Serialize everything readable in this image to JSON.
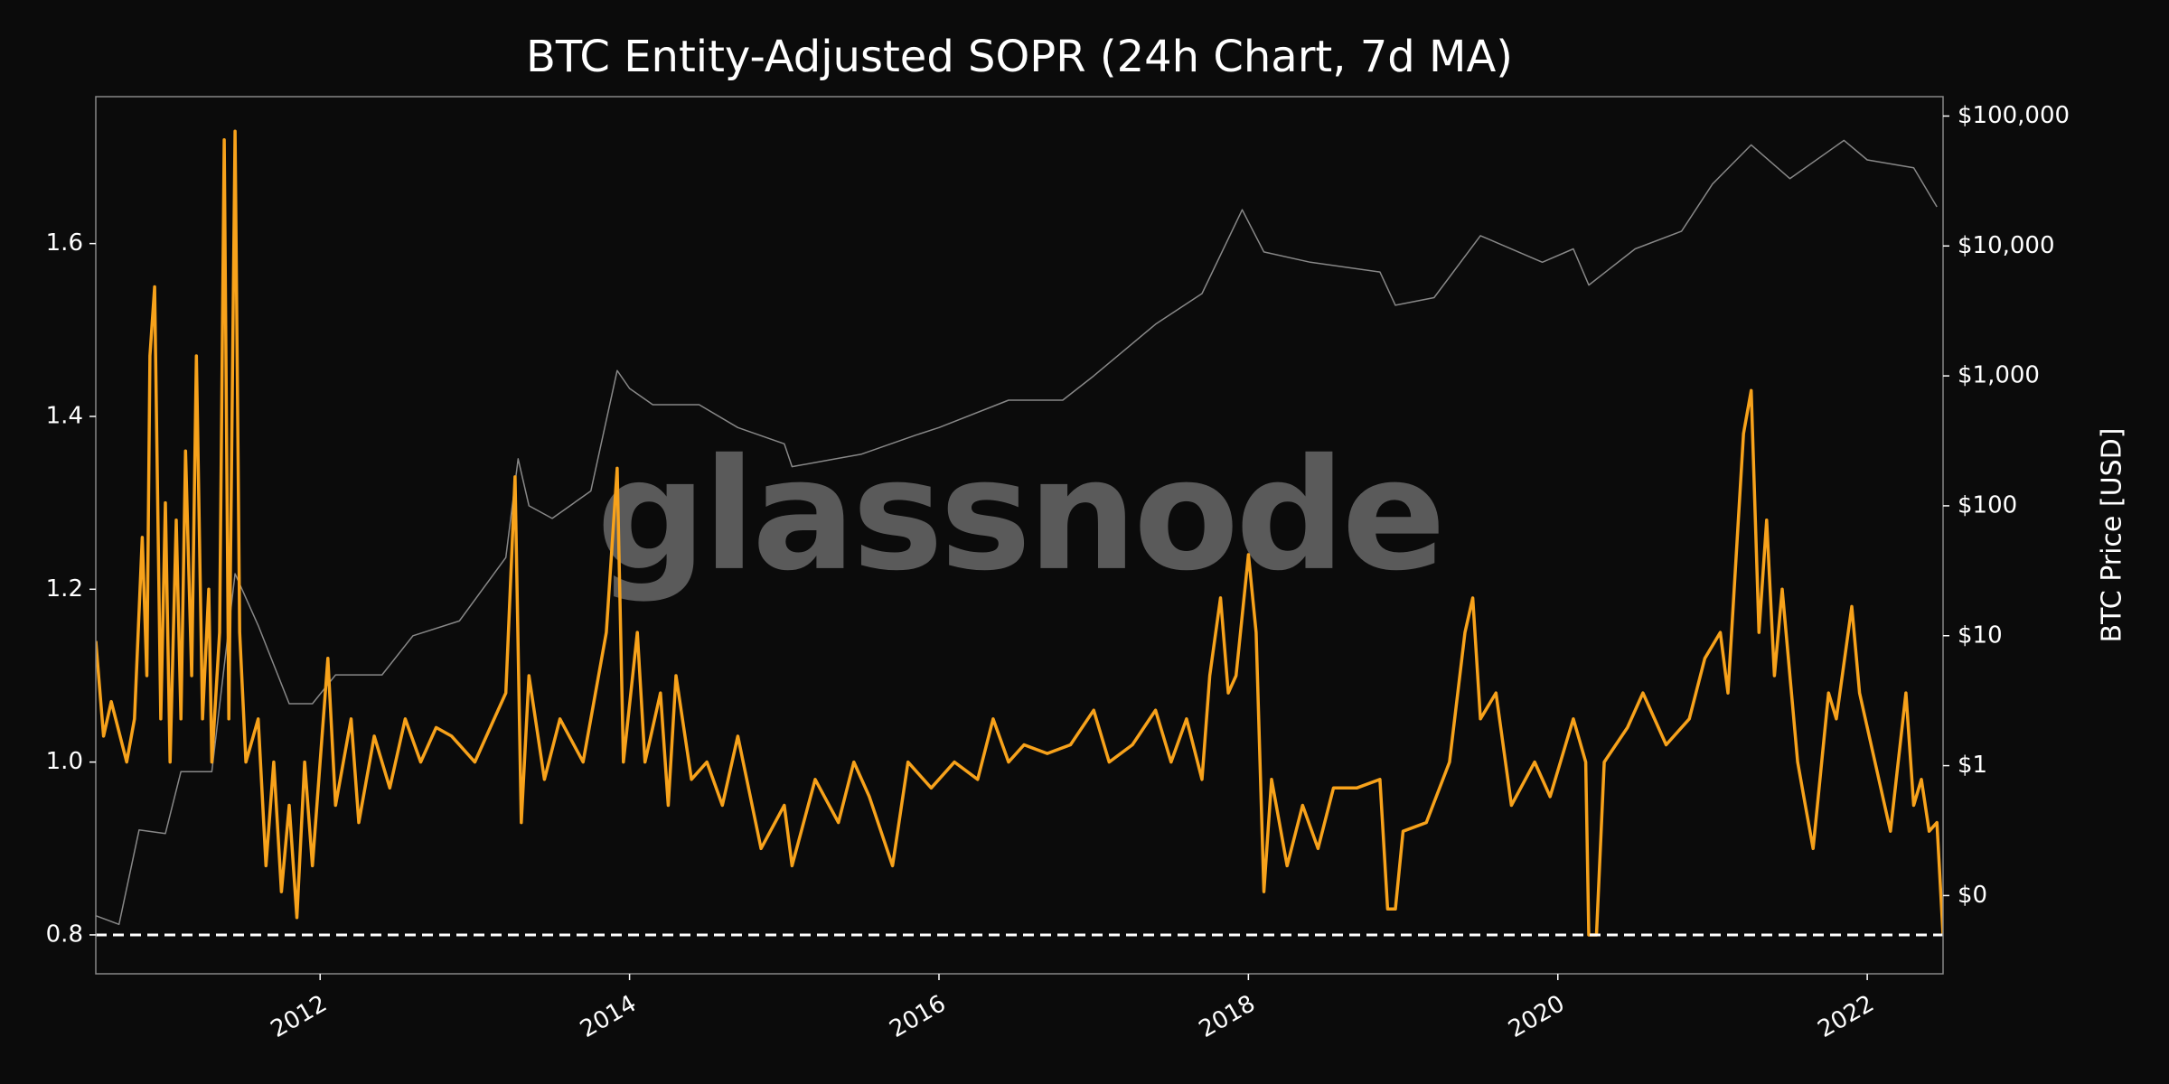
{
  "chart_data": {
    "type": "line",
    "title": "BTC Entity-Adjusted SOPR (24h Chart, 7d MA)",
    "watermark": "glassnode",
    "y2label": "BTC Price [USD]",
    "xlim": [
      2010.55,
      2022.49
    ],
    "xticks": [
      2012,
      2014,
      2016,
      2018,
      2020,
      2022
    ],
    "ylim": [
      0.755,
      1.77
    ],
    "yticks": [
      0.8,
      {
        "value": 1,
        "label": "1.0"
      },
      1.2,
      1.4,
      1.6
    ],
    "y2lim": [
      0.025,
      141000
    ],
    "y2log": true,
    "y2ticks": [
      {
        "value": 0.1,
        "label": "$0"
      },
      {
        "value": 1,
        "label": "$1"
      },
      {
        "value": 10,
        "label": "$10"
      },
      {
        "value": 100,
        "label": "$100"
      },
      {
        "value": 1000,
        "label": "$1,000"
      },
      {
        "value": 10000,
        "label": "$10,000"
      },
      {
        "value": 100000,
        "label": "$100,000"
      }
    ],
    "hline": 0.8,
    "hline_color": "#ffffff",
    "background": "#0b0b0b",
    "series": [
      {
        "color": "#888888",
        "axis": "y2",
        "x": [
          2010.55,
          2010.7,
          2010.83,
          2011.0,
          2011.1,
          2011.3,
          2011.45,
          2011.6,
          2011.8,
          2011.95,
          2012.1,
          2012.4,
          2012.6,
          2012.9,
          2013.2,
          2013.28,
          2013.35,
          2013.5,
          2013.75,
          2013.92,
          2014.0,
          2014.15,
          2014.45,
          2014.7,
          2015.0,
          2015.05,
          2015.5,
          2015.85,
          2016.0,
          2016.45,
          2016.8,
          2017.0,
          2017.4,
          2017.7,
          2017.96,
          2018.1,
          2018.4,
          2018.85,
          2018.95,
          2019.2,
          2019.5,
          2019.9,
          2020.1,
          2020.2,
          2020.5,
          2020.8,
          2021.0,
          2021.25,
          2021.5,
          2021.85,
          2022.0,
          2022.3,
          2022.45
        ],
        "values": [
          0.07,
          0.06,
          0.32,
          0.3,
          0.9,
          0.9,
          30,
          12,
          3,
          3,
          5,
          5,
          10,
          13,
          40,
          230,
          100,
          80,
          130,
          1100,
          800,
          600,
          600,
          400,
          300,
          200,
          250,
          350,
          400,
          650,
          650,
          1000,
          2500,
          4300,
          19000,
          9000,
          7500,
          6300,
          3500,
          4000,
          12000,
          7500,
          9500,
          5000,
          9500,
          13000,
          30000,
          60000,
          33000,
          65000,
          46000,
          40000,
          20000
        ]
      },
      {
        "color": "#f7a21b",
        "axis": "y",
        "x": [
          2010.55,
          2010.6,
          2010.65,
          2010.75,
          2010.8,
          2010.85,
          2010.88,
          2010.9,
          2010.93,
          2010.97,
          2011.0,
          2011.03,
          2011.07,
          2011.1,
          2011.13,
          2011.17,
          2011.2,
          2011.24,
          2011.28,
          2011.3,
          2011.35,
          2011.38,
          2011.41,
          2011.45,
          2011.48,
          2011.52,
          2011.6,
          2011.65,
          2011.7,
          2011.75,
          2011.8,
          2011.85,
          2011.9,
          2011.95,
          2012.0,
          2012.05,
          2012.1,
          2012.2,
          2012.25,
          2012.35,
          2012.45,
          2012.55,
          2012.65,
          2012.75,
          2012.85,
          2013.0,
          2013.1,
          2013.2,
          2013.26,
          2013.3,
          2013.35,
          2013.45,
          2013.55,
          2013.7,
          2013.85,
          2013.92,
          2013.96,
          2014.05,
          2014.1,
          2014.2,
          2014.25,
          2014.3,
          2014.4,
          2014.5,
          2014.6,
          2014.7,
          2014.85,
          2015.0,
          2015.05,
          2015.2,
          2015.35,
          2015.45,
          2015.55,
          2015.7,
          2015.8,
          2015.95,
          2016.1,
          2016.25,
          2016.35,
          2016.45,
          2016.55,
          2016.7,
          2016.85,
          2017.0,
          2017.1,
          2017.25,
          2017.4,
          2017.5,
          2017.6,
          2017.7,
          2017.75,
          2017.82,
          2017.87,
          2017.92,
          2018.0,
          2018.05,
          2018.1,
          2018.15,
          2018.25,
          2018.35,
          2018.45,
          2018.55,
          2018.7,
          2018.85,
          2018.9,
          2018.95,
          2019.0,
          2019.15,
          2019.3,
          2019.4,
          2019.45,
          2019.5,
          2019.6,
          2019.7,
          2019.85,
          2019.95,
          2020.1,
          2020.18,
          2020.2,
          2020.25,
          2020.3,
          2020.45,
          2020.55,
          2020.7,
          2020.85,
          2020.95,
          2021.05,
          2021.1,
          2021.2,
          2021.25,
          2021.3,
          2021.35,
          2021.4,
          2021.45,
          2021.55,
          2021.6,
          2021.65,
          2021.75,
          2021.8,
          2021.9,
          2021.95,
          2022.05,
          2022.15,
          2022.25,
          2022.3,
          2022.35,
          2022.4,
          2022.45,
          2022.49
        ],
        "values": [
          1.14,
          1.03,
          1.07,
          1.0,
          1.05,
          1.26,
          1.1,
          1.47,
          1.55,
          1.05,
          1.3,
          1.0,
          1.28,
          1.05,
          1.36,
          1.1,
          1.47,
          1.05,
          1.2,
          1.0,
          1.15,
          1.72,
          1.05,
          1.73,
          1.15,
          1.0,
          1.05,
          0.88,
          1.0,
          0.85,
          0.95,
          0.82,
          1.0,
          0.88,
          1.0,
          1.12,
          0.95,
          1.05,
          0.93,
          1.03,
          0.97,
          1.05,
          1.0,
          1.04,
          1.03,
          1.0,
          1.04,
          1.08,
          1.33,
          0.93,
          1.1,
          0.98,
          1.05,
          1.0,
          1.15,
          1.34,
          1.0,
          1.15,
          1.0,
          1.08,
          0.95,
          1.1,
          0.98,
          1.0,
          0.95,
          1.03,
          0.9,
          0.95,
          0.88,
          0.98,
          0.93,
          1.0,
          0.96,
          0.88,
          1.0,
          0.97,
          1.0,
          0.98,
          1.05,
          1.0,
          1.02,
          1.01,
          1.02,
          1.06,
          1.0,
          1.02,
          1.06,
          1.0,
          1.05,
          0.98,
          1.1,
          1.19,
          1.08,
          1.1,
          1.24,
          1.15,
          0.85,
          0.98,
          0.88,
          0.95,
          0.9,
          0.97,
          0.97,
          0.98,
          0.83,
          0.83,
          0.92,
          0.93,
          1.0,
          1.15,
          1.19,
          1.05,
          1.08,
          0.95,
          1.0,
          0.96,
          1.05,
          1.0,
          0.8,
          0.8,
          1.0,
          1.04,
          1.08,
          1.02,
          1.05,
          1.12,
          1.15,
          1.08,
          1.38,
          1.43,
          1.15,
          1.28,
          1.1,
          1.2,
          1.0,
          0.95,
          0.9,
          1.08,
          1.05,
          1.18,
          1.08,
          1.0,
          0.92,
          1.08,
          0.95,
          0.98,
          0.92,
          0.93,
          0.8
        ]
      }
    ]
  }
}
